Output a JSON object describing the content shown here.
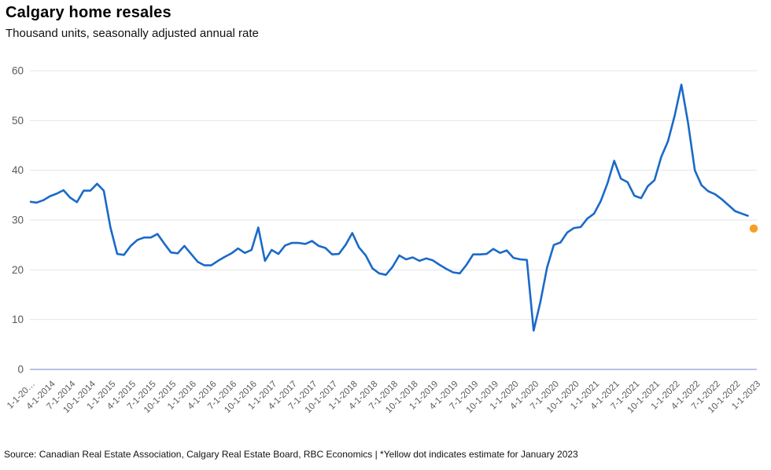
{
  "header": {
    "title": "Calgary home resales",
    "subtitle": "Thousand units, seasonally adjusted annual rate"
  },
  "footer": {
    "source": "Source: Canadian Real Estate Association, Calgary Real Estate Board, RBC Economics | *Yellow dot indicates estimate for January 2023"
  },
  "colors": {
    "line": "#1a6ac8",
    "estimate_dot": "#f79e24",
    "gridline": "#e4e4e4",
    "zero_axis_line": "#b7c3ea",
    "tick_text": "#595959",
    "title_text": "#000000"
  },
  "chart_data": {
    "type": "line",
    "title": "Calgary home resales",
    "subtitle": "Thousand units, seasonally adjusted annual rate",
    "xlabel": "",
    "ylabel": "Thousand units, seasonally adjusted annual rate",
    "ylim": [
      0,
      60
    ],
    "yticks": [
      0,
      10,
      20,
      30,
      40,
      50,
      60
    ],
    "grid": "horizontal",
    "legend": "none",
    "frequency": "monthly",
    "x_start": "1-1-2014",
    "x_end": "12-1-2022",
    "x_tick_labels": [
      "1-1-20…",
      "4-1-2014",
      "7-1-2014",
      "10-1-2014",
      "1-1-2015",
      "4-1-2015",
      "7-1-2015",
      "10-1-2015",
      "1-1-2016",
      "4-1-2016",
      "7-1-2016",
      "10-1-2016",
      "1-1-2017",
      "4-1-2017",
      "7-1-2017",
      "10-1-2017",
      "1-1-2018",
      "4-1-2018",
      "7-1-2018",
      "10-1-2018",
      "1-1-2019",
      "4-1-2019",
      "7-1-2019",
      "10-1-2019",
      "1-1-2020",
      "4-1-2020",
      "7-1-2020",
      "10-1-2020",
      "1-1-2021",
      "4-1-2021",
      "7-1-2021",
      "10-1-2021",
      "1-1-2022",
      "4-1-2022",
      "7-1-2022",
      "10-1-2022",
      "1-1-2023"
    ],
    "x_tick_every_n_months": 3,
    "series": [
      {
        "name": "Calgary home resales",
        "values": [
          33.7,
          33.5,
          34.0,
          34.8,
          35.3,
          36.0,
          34.5,
          33.6,
          35.9,
          35.9,
          37.3,
          35.9,
          28.5,
          23.2,
          23.0,
          24.8,
          26.0,
          26.5,
          26.5,
          27.2,
          25.3,
          23.5,
          23.3,
          24.8,
          23.2,
          21.6,
          20.9,
          20.9,
          21.8,
          22.6,
          23.3,
          24.3,
          23.4,
          24.0,
          28.5,
          21.8,
          24.0,
          23.2,
          24.9,
          25.4,
          25.4,
          25.2,
          25.8,
          24.8,
          24.4,
          23.1,
          23.2,
          25.0,
          27.4,
          24.5,
          22.9,
          20.3,
          19.3,
          19.0,
          20.6,
          22.9,
          22.1,
          22.5,
          21.8,
          22.3,
          21.9,
          21.0,
          20.2,
          19.5,
          19.3,
          21.0,
          23.1,
          23.1,
          23.2,
          24.2,
          23.4,
          23.9,
          22.4,
          22.1,
          22.0,
          7.8,
          13.5,
          20.5,
          25.0,
          25.5,
          27.5,
          28.4,
          28.6,
          30.3,
          31.3,
          33.8,
          37.4,
          41.9,
          38.3,
          37.6,
          34.9,
          34.4,
          36.8,
          38.0,
          42.7,
          45.8,
          51.0,
          57.2,
          49.5,
          40.0,
          37.0,
          35.8,
          35.2,
          34.2,
          33.0,
          31.8,
          31.3,
          30.8
        ]
      }
    ],
    "estimate_point": {
      "applies_to": "January 2023",
      "x_label": "1-1-2023",
      "value": 28.3,
      "marker": "dot",
      "color_name": "yellow"
    }
  }
}
